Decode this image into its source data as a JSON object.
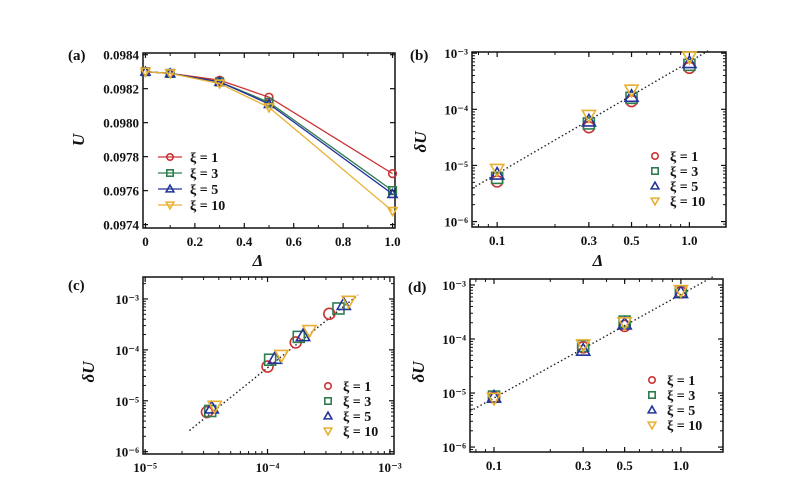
{
  "chart_data": [
    {
      "panel": "(a)",
      "type": "line",
      "xlabel": "Δ",
      "ylabel": "U",
      "x_scale": "linear",
      "y_scale": "linear",
      "xlim": [
        -0.01,
        1.01
      ],
      "ylim": [
        0.09738,
        0.09841
      ],
      "xticks": [
        0,
        0.2,
        0.4,
        0.6,
        0.8,
        1.0
      ],
      "xtick_labels": [
        "0",
        "0.2",
        "0.4",
        "0.6",
        "0.8",
        "1.0"
      ],
      "yticks": [
        0.0974,
        0.0976,
        0.0978,
        0.098,
        0.0982,
        0.0984
      ],
      "ytick_labels": [
        "0.0974",
        "0.0976",
        "0.0978",
        "0.0980",
        "0.0982",
        "0.0984"
      ],
      "grid": false,
      "legend": "lower-left",
      "series": [
        {
          "name": "ξ = 1",
          "color": "#cc3333",
          "marker": "circle",
          "x": [
            0,
            0.1,
            0.3,
            0.5,
            1.0
          ],
          "y": [
            0.0983,
            0.09829,
            0.09825,
            0.09815,
            0.0977
          ]
        },
        {
          "name": "ξ = 3",
          "color": "#2e7d4f",
          "marker": "square",
          "x": [
            0,
            0.1,
            0.3,
            0.5,
            1.0
          ],
          "y": [
            0.0983,
            0.09829,
            0.09824,
            0.09812,
            0.0976
          ]
        },
        {
          "name": "ξ = 5",
          "color": "#22339a",
          "marker": "triangle-up",
          "x": [
            0,
            0.1,
            0.3,
            0.5,
            1.0
          ],
          "y": [
            0.0983,
            0.09829,
            0.09824,
            0.09811,
            0.09758
          ]
        },
        {
          "name": "ξ = 10",
          "color": "#e8b030",
          "marker": "triangle-down",
          "x": [
            0,
            0.1,
            0.3,
            0.5,
            1.0
          ],
          "y": [
            0.0983,
            0.09829,
            0.09823,
            0.09809,
            0.09748
          ]
        }
      ]
    },
    {
      "panel": "(b)",
      "type": "scatter",
      "xlabel": "Δ",
      "ylabel": "δU",
      "x_scale": "log",
      "y_scale": "log",
      "xlim": [
        0.074,
        1.55
      ],
      "ylim": [
        8e-07,
        0.00105
      ],
      "xticks": [
        0.1,
        0.3,
        0.5,
        1.0
      ],
      "xtick_labels": [
        "0.1",
        "0.3",
        "0.5",
        "1.0"
      ],
      "yticks": [
        1e-06,
        1e-05,
        0.0001,
        0.001
      ],
      "ytick_labels": [
        "10⁻⁶",
        "10⁻⁵",
        "10⁻⁴",
        "10⁻³"
      ],
      "grid": false,
      "legend": "lower-right",
      "fit_line": {
        "style": "dotted",
        "x": [
          0.074,
          1.25
        ],
        "y": [
          3.9e-06,
          0.0011
        ]
      },
      "series": [
        {
          "name": "ξ = 1",
          "color": "#cc3333",
          "marker": "circle",
          "x": [
            0.1,
            0.3,
            0.5,
            1.0
          ],
          "y": [
            5.2e-06,
            4.8e-05,
            0.00014,
            0.00055
          ]
        },
        {
          "name": "ξ = 3",
          "color": "#2e7d4f",
          "marker": "square",
          "x": [
            0.1,
            0.3,
            0.5,
            1.0
          ],
          "y": [
            6e-06,
            5.6e-05,
            0.00016,
            0.00062
          ]
        },
        {
          "name": "ξ = 5",
          "color": "#22339a",
          "marker": "triangle-up",
          "x": [
            0.1,
            0.3,
            0.5,
            1.0
          ],
          "y": [
            7e-06,
            6.2e-05,
            0.00017,
            0.00068
          ]
        },
        {
          "name": "ξ = 10",
          "color": "#e8b030",
          "marker": "triangle-down",
          "x": [
            0.1,
            0.3,
            0.5,
            1.0
          ],
          "y": [
            8.5e-06,
            7.8e-05,
            0.00022,
            0.00085
          ]
        }
      ]
    },
    {
      "panel": "(c)",
      "type": "scatter",
      "xlabel": "",
      "ylabel": "δU",
      "x_scale": "log",
      "y_scale": "log",
      "xlim": [
        9.6e-06,
        0.00108
      ],
      "ylim": [
        9e-07,
        0.0027
      ],
      "xticks": [
        1e-05,
        0.0001,
        0.001
      ],
      "xtick_labels": [
        "10⁻⁵",
        "10⁻⁴",
        "10⁻³"
      ],
      "yticks": [
        1e-06,
        1e-05,
        0.0001,
        0.001
      ],
      "ytick_labels": [
        "10⁻⁶",
        "10⁻⁵",
        "10⁻⁴",
        "10⁻³"
      ],
      "grid": false,
      "legend": "lower-right",
      "fit_line": {
        "style": "dotted",
        "x": [
          2.3e-05,
          0.00055
        ],
        "y": [
          2.6e-06,
          0.0012
        ]
      },
      "series": [
        {
          "name": "ξ = 1",
          "color": "#cc3333",
          "marker": "circle",
          "x": [
            3.2e-05,
            0.0001,
            0.00017,
            0.00032
          ],
          "y": [
            6e-06,
            4.7e-05,
            0.00014,
            0.00051
          ]
        },
        {
          "name": "ξ = 3",
          "color": "#2e7d4f",
          "marker": "square",
          "x": [
            3.4e-05,
            0.000105,
            0.00018,
            0.00038
          ],
          "y": [
            6.3e-06,
            6.4e-05,
            0.00018,
            0.00065
          ]
        },
        {
          "name": "ξ = 5",
          "color": "#22339a",
          "marker": "triangle-up",
          "x": [
            3.5e-05,
            0.000115,
            0.000195,
            0.00042
          ],
          "y": [
            7.2e-06,
            6.8e-05,
            0.00019,
            0.00078
          ]
        },
        {
          "name": "ξ = 10",
          "color": "#e8b030",
          "marker": "triangle-down",
          "x": [
            3.7e-05,
            0.00013,
            0.00022,
            0.00046
          ],
          "y": [
            7.8e-06,
            7.8e-05,
            0.00024,
            0.0009
          ]
        }
      ]
    },
    {
      "panel": "(d)",
      "type": "scatter",
      "xlabel": "",
      "ylabel": "δU",
      "x_scale": "log",
      "y_scale": "log",
      "xlim": [
        0.0744,
        1.68
      ],
      "ylim": [
        8.1e-07,
        0.00129
      ],
      "xticks": [
        0.1,
        0.3,
        0.5,
        1.0
      ],
      "xtick_labels": [
        "0.1",
        "0.3",
        "0.5",
        "1.0"
      ],
      "yticks": [
        1e-06,
        1e-05,
        0.0001,
        0.001
      ],
      "ytick_labels": [
        "10⁻⁶",
        "10⁻⁵",
        "10⁻⁴",
        "10⁻³"
      ],
      "grid": false,
      "legend": "lower-right",
      "fit_line": {
        "style": "dotted",
        "x": [
          0.0744,
          1.5
        ],
        "y": [
          4.6e-06,
          0.00145
        ]
      },
      "series": [
        {
          "name": "ξ = 1",
          "color": "#cc3333",
          "marker": "circle",
          "x": [
            0.1,
            0.3,
            0.5,
            1.0
          ],
          "y": [
            8.3e-06,
            7e-05,
            0.000175,
            0.00073
          ]
        },
        {
          "name": "ξ = 3",
          "color": "#2e7d4f",
          "marker": "square",
          "x": [
            0.1,
            0.3,
            0.5,
            1.0
          ],
          "y": [
            8.6e-06,
            7.4e-05,
            0.00021,
            0.00076
          ]
        },
        {
          "name": "ξ = 5",
          "color": "#22339a",
          "marker": "triangle-up",
          "x": [
            0.1,
            0.3,
            0.5,
            1.0
          ],
          "y": [
            8.4e-06,
            6.2e-05,
            0.00019,
            0.00072
          ]
        },
        {
          "name": "ξ = 10",
          "color": "#e8b030",
          "marker": "triangle-down",
          "x": [
            0.1,
            0.3,
            0.5,
            1.0
          ],
          "y": [
            8e-06,
            7.8e-05,
            0.0002,
            0.00079
          ]
        }
      ]
    }
  ]
}
